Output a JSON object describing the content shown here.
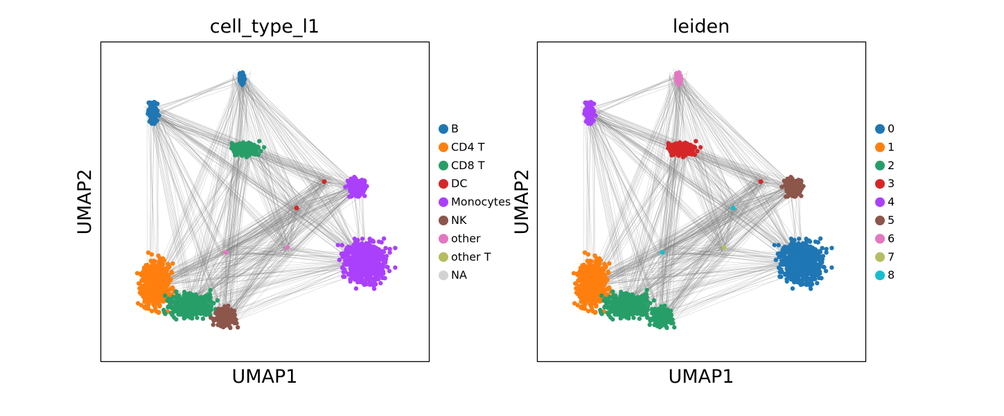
{
  "chart_data": [
    {
      "type": "scatter",
      "title": "cell_type_l1",
      "xlabel": "UMAP1",
      "ylabel": "UMAP2",
      "grid": false,
      "ticks": "none",
      "legend_position": "right",
      "edges_color": "#808080",
      "series": [
        {
          "name": "B",
          "color": "#1f77b4"
        },
        {
          "name": "CD4 T",
          "color": "#ff7f0e"
        },
        {
          "name": "CD8 T",
          "color": "#279e68"
        },
        {
          "name": "DC",
          "color": "#d62728"
        },
        {
          "name": "Monocytes",
          "color": "#aa40fc"
        },
        {
          "name": "NK",
          "color": "#8c564b"
        },
        {
          "name": "other",
          "color": "#e377c2"
        },
        {
          "name": "other T",
          "color": "#b5bd61"
        },
        {
          "name": "NA",
          "color": "#d3d3d3"
        }
      ]
    },
    {
      "type": "scatter",
      "title": "leiden",
      "xlabel": "UMAP1",
      "ylabel": "UMAP2",
      "grid": false,
      "ticks": "none",
      "legend_position": "right",
      "edges_color": "#808080",
      "series": [
        {
          "name": "0",
          "color": "#1f77b4"
        },
        {
          "name": "1",
          "color": "#ff7f0e"
        },
        {
          "name": "2",
          "color": "#279e68"
        },
        {
          "name": "3",
          "color": "#d62728"
        },
        {
          "name": "4",
          "color": "#aa40fc"
        },
        {
          "name": "5",
          "color": "#8c564b"
        },
        {
          "name": "6",
          "color": "#e377c2"
        },
        {
          "name": "7",
          "color": "#b5bd61"
        },
        {
          "name": "8",
          "color": "#17becf"
        }
      ]
    }
  ]
}
